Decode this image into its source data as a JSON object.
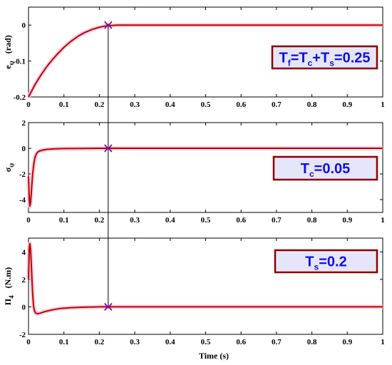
{
  "colors": {
    "curve": "#c00000",
    "halo": "#f4c6d9",
    "marker": "#7a0f9a",
    "annot_text": "#1010e0",
    "annot_fill": "#e6e6fa",
    "annot_border": "#8b0000"
  },
  "chart_data": [
    {
      "type": "line",
      "xlabel": "",
      "ylabel_main": "e",
      "ylabel_sub": "ψ",
      "ylabel_unit": "(rad)",
      "xlim": [
        0,
        1
      ],
      "ylim": [
        -0.2,
        0.05
      ],
      "xticks": [
        0,
        0.1,
        0.2,
        0.3,
        0.4,
        0.5,
        0.6,
        0.7,
        0.8,
        0.9,
        1
      ],
      "xtick_labels": [
        "0",
        "0.1",
        "0.2",
        "0.3",
        "0.4",
        "0.5",
        "0.6",
        "0.7",
        "0.8",
        "0.9",
        "1"
      ],
      "yticks": [
        -0.2,
        -0.1,
        0
      ],
      "ytick_labels": [
        "-0.2",
        "-0.1",
        "0"
      ],
      "series": [
        {
          "x": [
            0,
            0.01,
            0.02,
            0.03,
            0.04,
            0.05,
            0.06,
            0.08,
            0.1,
            0.12,
            0.14,
            0.16,
            0.18,
            0.2,
            0.22,
            0.25,
            0.3,
            0.4,
            0.5,
            0.6,
            0.7,
            0.8,
            0.9,
            1.0
          ],
          "y": [
            -0.2,
            -0.181,
            -0.163,
            -0.147,
            -0.132,
            -0.118,
            -0.105,
            -0.082,
            -0.062,
            -0.045,
            -0.031,
            -0.02,
            -0.012,
            -0.006,
            -0.002,
            0,
            0,
            0,
            0,
            0,
            0,
            0,
            0,
            0
          ]
        }
      ],
      "annotation_parts": [
        {
          "t": "T",
          "sub": false
        },
        {
          "t": "f",
          "sub": true
        },
        {
          "t": "=T",
          "sub": false
        },
        {
          "t": "c",
          "sub": true
        },
        {
          "t": "+T",
          "sub": false
        },
        {
          "t": "s",
          "sub": true
        },
        {
          "t": "=0.25",
          "sub": false
        }
      ]
    },
    {
      "type": "line",
      "xlabel": "",
      "ylabel_main": "σ",
      "ylabel_sub": "ψ",
      "ylabel_unit": "",
      "xlim": [
        0,
        1
      ],
      "ylim": [
        -5,
        2
      ],
      "xticks": [
        0,
        0.1,
        0.2,
        0.3,
        0.4,
        0.5,
        0.6,
        0.7,
        0.8,
        0.9,
        1
      ],
      "xtick_labels": [
        "0",
        "0.1",
        "0.2",
        "0.3",
        "0.4",
        "0.5",
        "0.6",
        "0.7",
        "0.8",
        "0.9",
        "1"
      ],
      "yticks": [
        -4,
        -2,
        0,
        2
      ],
      "ytick_labels": [
        "-4",
        "-2",
        "0",
        "2"
      ],
      "series": [
        {
          "x": [
            0,
            0.002,
            0.004,
            0.006,
            0.008,
            0.01,
            0.012,
            0.015,
            0.018,
            0.022,
            0.026,
            0.03,
            0.04,
            0.05,
            0.07,
            0.1,
            0.15,
            0.2,
            0.3,
            0.5,
            0.7,
            1.0
          ],
          "y": [
            -2.2,
            -3.8,
            -4.5,
            -4.2,
            -3.4,
            -2.6,
            -1.9,
            -1.2,
            -0.75,
            -0.45,
            -0.3,
            -0.22,
            -0.14,
            -0.09,
            -0.05,
            -0.02,
            -0.01,
            0,
            0,
            0,
            0,
            0
          ]
        }
      ],
      "annotation_parts": [
        {
          "t": "T",
          "sub": false
        },
        {
          "t": "c",
          "sub": true
        },
        {
          "t": "=0.05",
          "sub": false
        }
      ]
    },
    {
      "type": "line",
      "xlabel": "Time (s)",
      "ylabel_main": "Π",
      "ylabel_sub": "4",
      "ylabel_unit": "(N.m)",
      "xlim": [
        0,
        1
      ],
      "ylim": [
        -2,
        5
      ],
      "xticks": [
        0,
        0.1,
        0.2,
        0.3,
        0.4,
        0.5,
        0.6,
        0.7,
        0.8,
        0.9,
        1
      ],
      "xtick_labels": [
        "0",
        "0.1",
        "0.2",
        "0.3",
        "0.4",
        "0.5",
        "0.6",
        "0.7",
        "0.8",
        "0.9",
        "1"
      ],
      "yticks": [
        -2,
        0,
        2,
        4
      ],
      "ytick_labels": [
        "-2",
        "0",
        "2",
        "4"
      ],
      "series": [
        {
          "x": [
            0,
            0.002,
            0.004,
            0.006,
            0.008,
            0.01,
            0.012,
            0.014,
            0.017,
            0.02,
            0.025,
            0.03,
            0.04,
            0.05,
            0.07,
            0.09,
            0.12,
            0.15,
            0.2,
            0.3,
            0.5,
            1.0
          ],
          "y": [
            2.0,
            4.2,
            4.6,
            4.1,
            3.0,
            1.8,
            0.8,
            0.1,
            -0.3,
            -0.45,
            -0.5,
            -0.48,
            -0.4,
            -0.32,
            -0.2,
            -0.12,
            -0.06,
            -0.03,
            0,
            0,
            0,
            0
          ]
        }
      ],
      "annotation_parts": [
        {
          "t": "T",
          "sub": false
        },
        {
          "t": "s",
          "sub": true
        },
        {
          "t": "=0.2",
          "sub": false
        }
      ]
    }
  ],
  "marker_x": 0.225
}
